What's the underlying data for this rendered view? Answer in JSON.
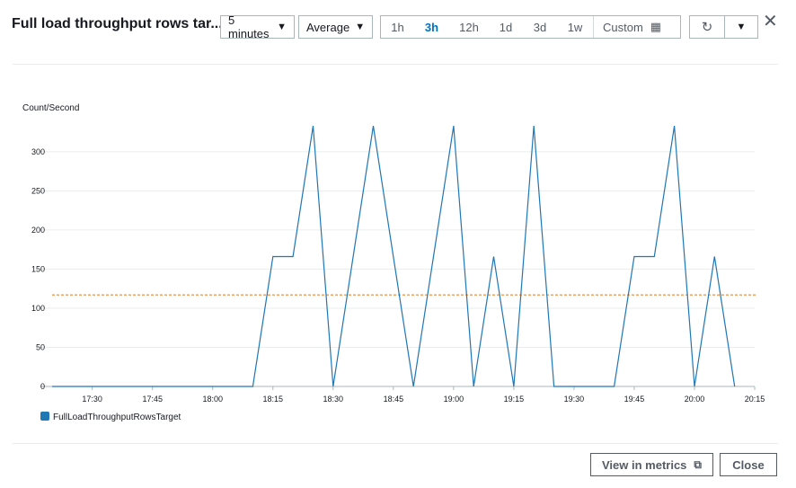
{
  "header": {
    "title": "Full load throughput rows tar...",
    "period": {
      "value": "5 minutes"
    },
    "statistic": {
      "value": "Average"
    },
    "ranges": [
      "1h",
      "3h",
      "12h",
      "1d",
      "3d",
      "1w"
    ],
    "active_range": "3h",
    "custom_label": "Custom",
    "icons": {
      "calendar": "calendar-icon",
      "refresh": "refresh-icon",
      "dropdown": "caret-down-icon",
      "close": "close-icon"
    }
  },
  "chart_data": {
    "type": "line",
    "title": "",
    "xlabel": "",
    "ylabel": "Count/Second",
    "ylim": [
      0,
      340
    ],
    "xlim": [
      "17:20",
      "20:15"
    ],
    "yticks": [
      0,
      50,
      100,
      150,
      200,
      250,
      300
    ],
    "xticks": [
      "17:30",
      "17:45",
      "18:00",
      "18:15",
      "18:30",
      "18:45",
      "19:00",
      "19:15",
      "19:30",
      "19:45",
      "20:00",
      "20:15"
    ],
    "grid": true,
    "legend": "bottom-left",
    "threshold": {
      "value": 117,
      "color": "#ec7211"
    },
    "series": [
      {
        "name": "FullLoadThroughputRowsTarget",
        "color": "#1f77b4",
        "x": [
          "17:20",
          "17:25",
          "17:30",
          "17:35",
          "17:40",
          "17:45",
          "17:50",
          "17:55",
          "18:00",
          "18:05",
          "18:10",
          "18:15",
          "18:20",
          "18:25",
          "18:30",
          "18:35",
          "18:40",
          "18:45",
          "18:50",
          "18:55",
          "19:00",
          "19:05",
          "19:10",
          "19:15",
          "19:20",
          "19:25",
          "19:30",
          "19:35",
          "19:40",
          "19:45",
          "19:50",
          "19:55",
          "20:00",
          "20:05",
          "20:10"
        ],
        "values": [
          0,
          0,
          0,
          0,
          0,
          0,
          0,
          0,
          0,
          0,
          0,
          166,
          166,
          333,
          0,
          166,
          333,
          166,
          0,
          166,
          333,
          0,
          166,
          0,
          333,
          0,
          0,
          0,
          0,
          166,
          166,
          333,
          0,
          166,
          0
        ]
      }
    ]
  },
  "footer": {
    "view_in_metrics": "View in metrics",
    "close": "Close",
    "external_icon": "external-link-icon"
  }
}
